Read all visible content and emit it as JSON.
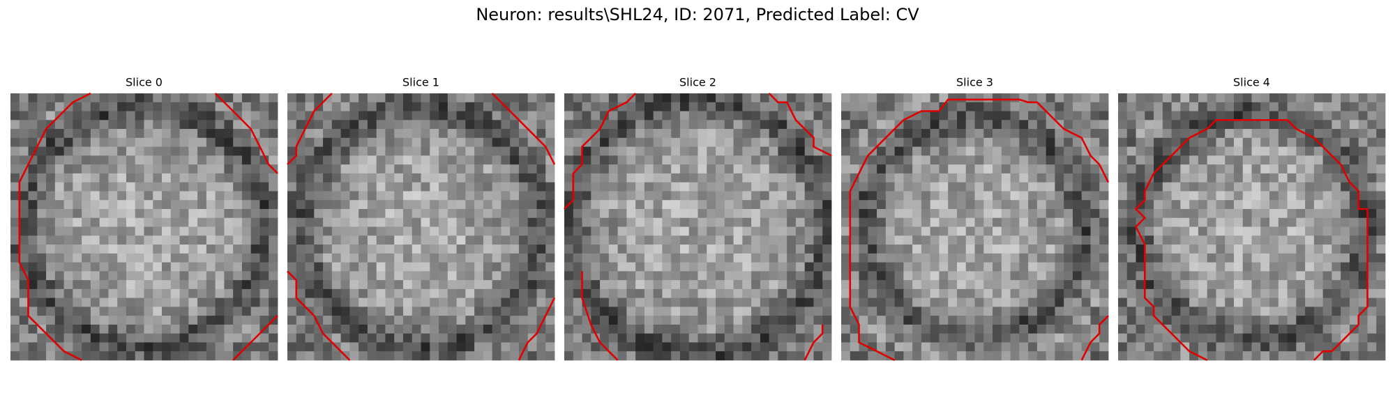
{
  "header": {
    "title": "Neuron: results\\SHL24, ID: 2071, Predicted Label: CV"
  },
  "panels": [
    {
      "title": "Slice 0"
    },
    {
      "title": "Slice 1"
    },
    {
      "title": "Slice 2"
    },
    {
      "title": "Slice 3"
    },
    {
      "title": "Slice 4"
    }
  ]
}
